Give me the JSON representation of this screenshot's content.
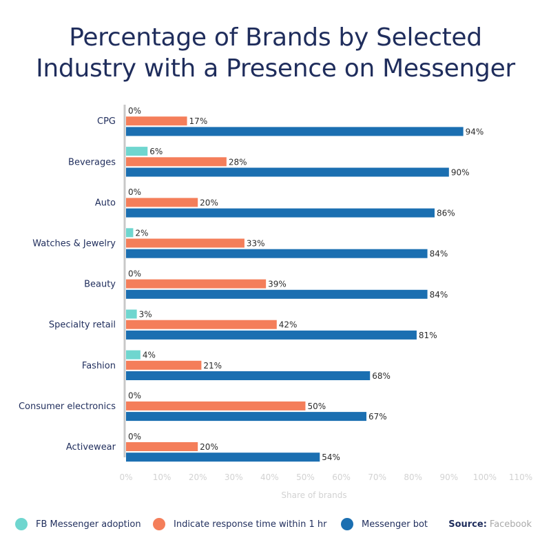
{
  "title_line1": "Percentage of Brands by Selected",
  "title_line2": "Industry with a Presence on Messenger",
  "chart_data": {
    "type": "bar",
    "orientation": "horizontal",
    "categories": [
      "CPG",
      "Beverages",
      "Auto",
      "Watches & Jewelry",
      "Beauty",
      "Specialty retail",
      "Fashion",
      "Consumer electronics",
      "Activewear"
    ],
    "series": [
      {
        "name": "FB Messenger adoption",
        "color": "#6fd6cf",
        "values": [
          0,
          6,
          0,
          2,
          0,
          3,
          4,
          0,
          0
        ]
      },
      {
        "name": "Indicate response time within 1 hr",
        "color": "#f47e5a",
        "values": [
          17,
          28,
          20,
          33,
          39,
          42,
          21,
          50,
          20
        ]
      },
      {
        "name": "Messenger bot",
        "color": "#1b6fb1",
        "values": [
          94,
          90,
          86,
          84,
          84,
          81,
          68,
          67,
          54
        ]
      }
    ],
    "value_suffix": "%",
    "xlim": [
      0,
      110
    ],
    "x_ticks": [
      "0%",
      "10%",
      "20%",
      "30%",
      "40%",
      "50%",
      "60%",
      "70%",
      "80%",
      "90%",
      "100%",
      "110%"
    ],
    "xlabel": "Share of brands",
    "legend_position": "bottom"
  },
  "source": {
    "label": "Source:",
    "value": "Facebook"
  }
}
